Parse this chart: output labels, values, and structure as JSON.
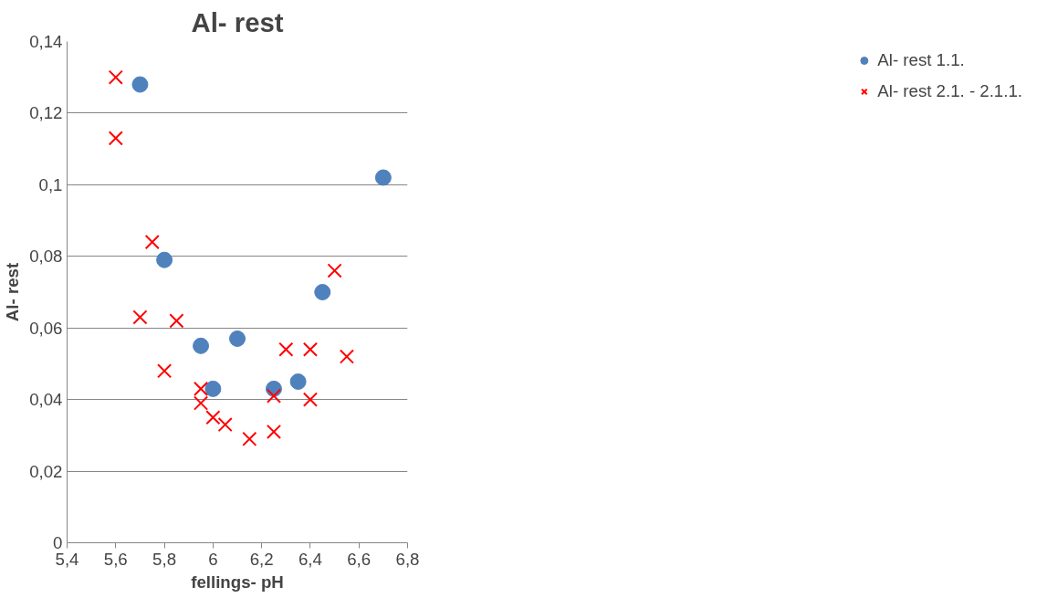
{
  "chart_data": {
    "type": "scatter",
    "title": "Al- rest",
    "xlabel": "fellings- pH",
    "ylabel": "Al- rest",
    "xlim": [
      5.4,
      6.8
    ],
    "xticks": [
      {
        "value": 5.4,
        "label": "5,4"
      },
      {
        "value": 5.6,
        "label": "5,6"
      },
      {
        "value": 5.8,
        "label": "5,8"
      },
      6,
      {
        "value": 6.2,
        "label": "6,2"
      },
      {
        "value": 6.4,
        "label": "6,4"
      },
      {
        "value": 6.6,
        "label": "6,6"
      },
      {
        "value": 6.8,
        "label": "6,8"
      }
    ],
    "ylim": [
      0,
      0.14
    ],
    "yticks": [
      0,
      {
        "value": 0.02,
        "label": "0,02"
      },
      {
        "value": 0.04,
        "label": "0,04"
      },
      {
        "value": 0.06,
        "label": "0,06"
      },
      {
        "value": 0.08,
        "label": "0,08"
      },
      {
        "value": 0.1,
        "label": "0,1"
      },
      {
        "value": 0.12,
        "label": "0,12"
      },
      {
        "value": 0.14,
        "label": "0,14"
      }
    ],
    "grid": "y",
    "legend": "right",
    "series": [
      {
        "name": "Al- rest 1.1.",
        "color": "#4f81bd",
        "marker": "circle",
        "x": [
          5.7,
          5.8,
          5.95,
          6.0,
          6.1,
          6.25,
          6.35,
          6.45,
          6.7
        ],
        "values": [
          0.128,
          0.079,
          0.055,
          0.043,
          0.057,
          0.043,
          0.045,
          0.07,
          0.102
        ]
      },
      {
        "name": "Al- rest 2.1. - 2.1.1.",
        "color": "#ff0000",
        "marker": "cross",
        "x": [
          5.6,
          5.6,
          5.7,
          5.75,
          5.8,
          5.85,
          5.95,
          5.95,
          6.0,
          6.05,
          6.15,
          6.25,
          6.25,
          6.3,
          6.4,
          6.4,
          6.5,
          6.55
        ],
        "values": [
          0.13,
          0.113,
          0.063,
          0.084,
          0.048,
          0.062,
          0.043,
          0.039,
          0.035,
          0.033,
          0.029,
          0.031,
          0.041,
          0.054,
          0.054,
          0.04,
          0.076,
          0.052
        ]
      }
    ]
  }
}
